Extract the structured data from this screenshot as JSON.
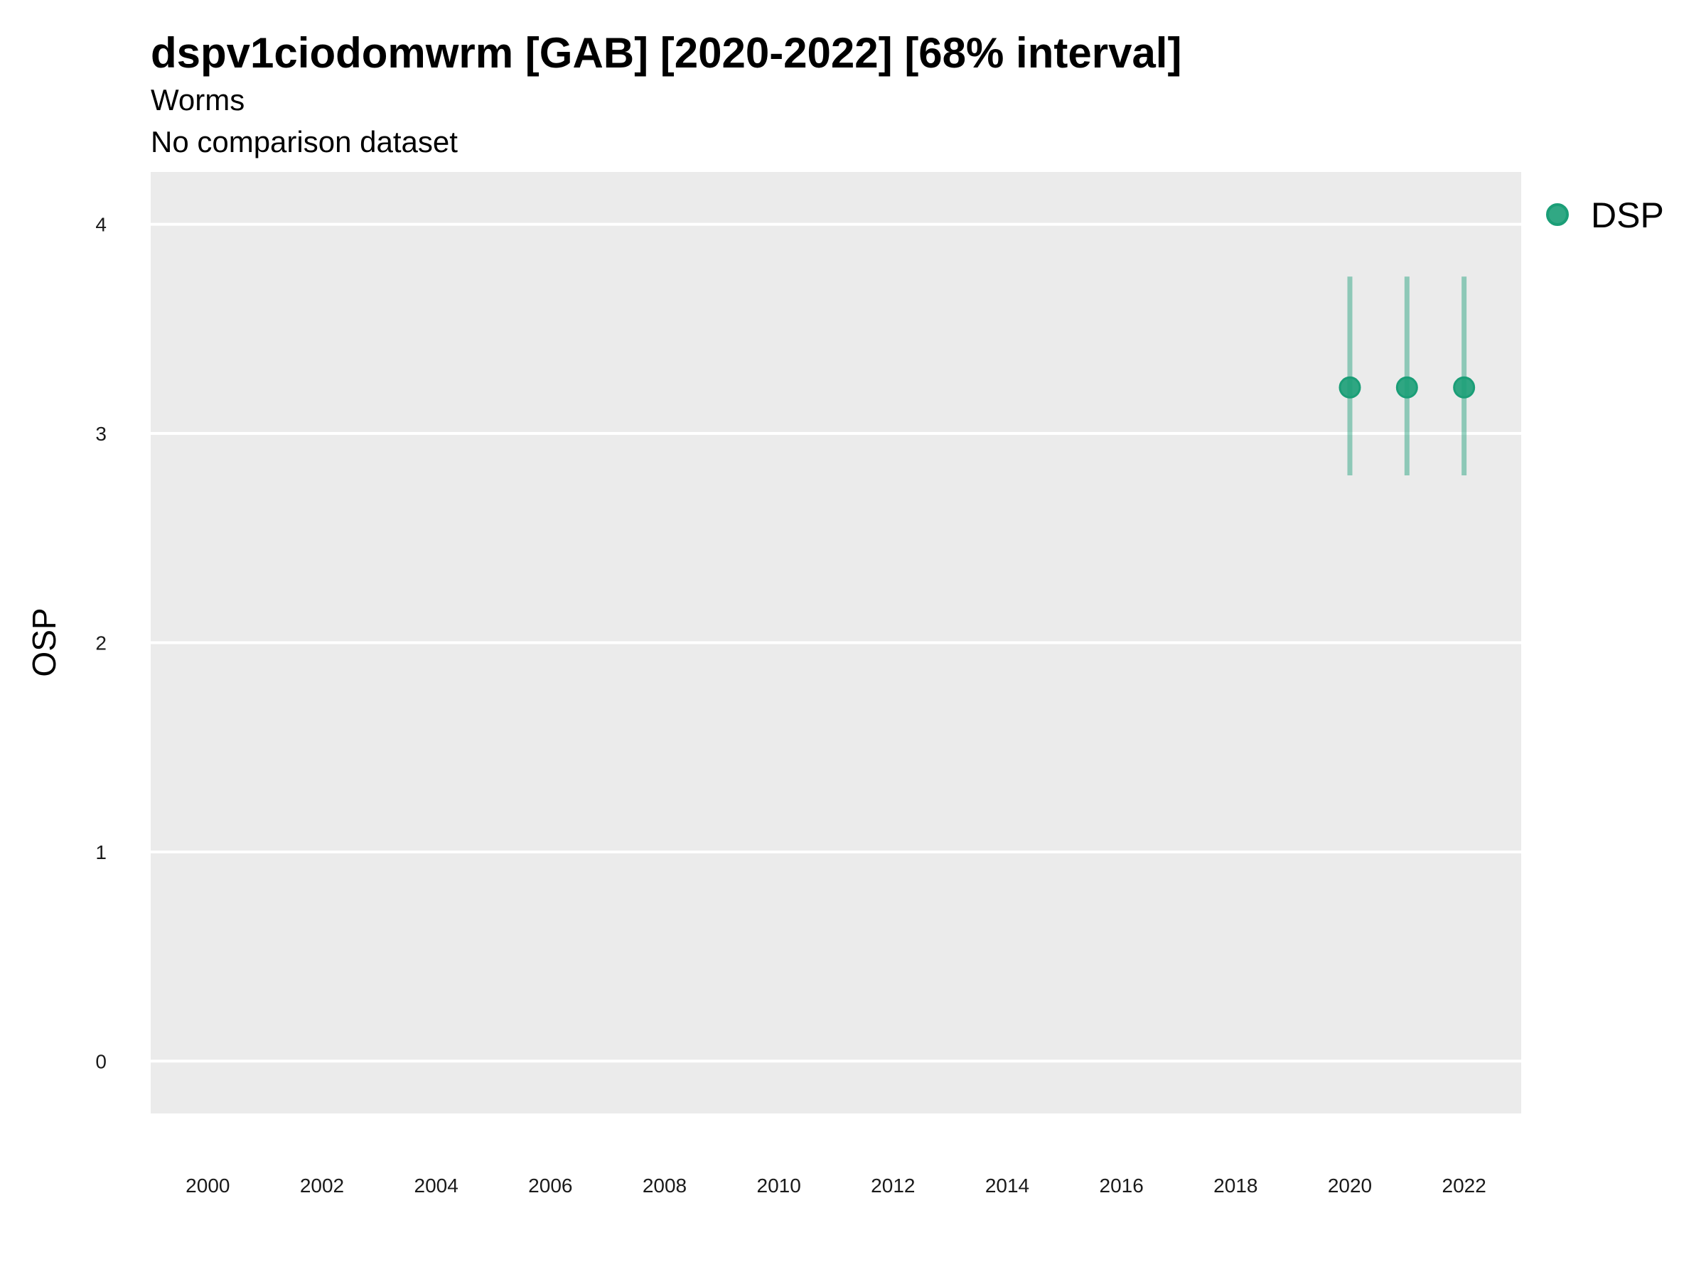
{
  "chart_data": {
    "type": "scatter",
    "title": "dspv1ciodomwrm [GAB] [2020-2022] [68% interval]",
    "subtitle": "Worms",
    "caption": "No comparison dataset",
    "xlabel": "",
    "ylabel": "OSP",
    "xlim": [
      1999,
      2023
    ],
    "ylim": [
      -0.25,
      4.25
    ],
    "x_ticks": [
      2000,
      2002,
      2004,
      2006,
      2008,
      2010,
      2012,
      2014,
      2016,
      2018,
      2020,
      2022
    ],
    "y_ticks": [
      0,
      1,
      2,
      3,
      4
    ],
    "grid": "horizontal major",
    "panel_background": "#ebebeb",
    "legend_position": "right",
    "series": [
      {
        "name": "DSP",
        "color": "#1b9e77",
        "points": [
          {
            "x": 2020,
            "y": 3.22,
            "lower": 2.8,
            "upper": 3.75
          },
          {
            "x": 2021,
            "y": 3.22,
            "lower": 2.8,
            "upper": 3.75
          },
          {
            "x": 2022,
            "y": 3.22,
            "lower": 2.8,
            "upper": 3.75
          }
        ]
      }
    ]
  }
}
